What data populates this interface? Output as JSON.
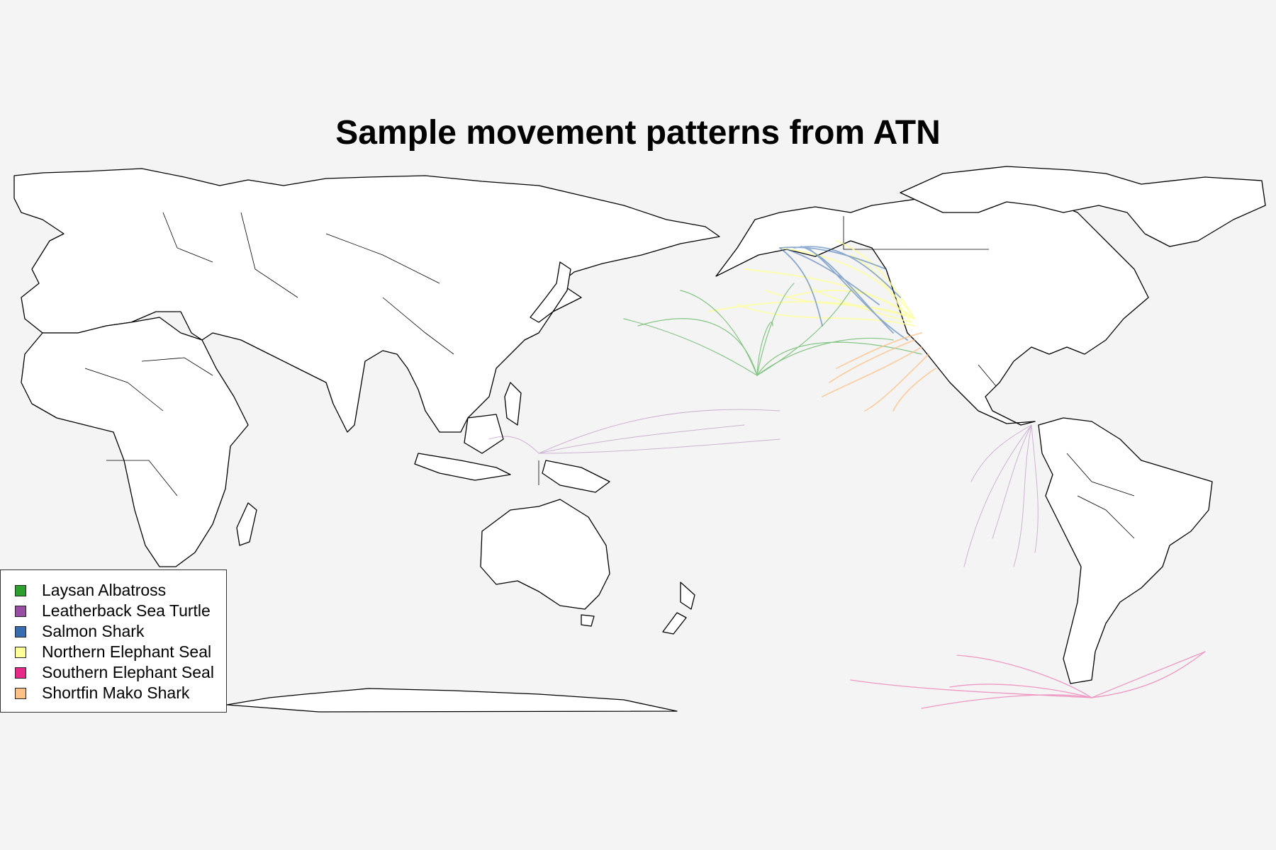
{
  "title": "Sample movement patterns from ATN",
  "map": {
    "background_color": "#f4f4f4",
    "land_color": "#ffffff",
    "border_color": "#000000",
    "projection": "Pacific-centered world map"
  },
  "legend": {
    "items": [
      {
        "label": "Laysan Albatross",
        "color": "#2ca02c"
      },
      {
        "label": "Leatherback Sea Turtle",
        "color": "#984ea3"
      },
      {
        "label": "Salmon Shark",
        "color": "#386cb0"
      },
      {
        "label": "Northern Elephant Seal",
        "color": "#ffff99"
      },
      {
        "label": "Southern Elephant Seal",
        "color": "#e7298a"
      },
      {
        "label": "Shortfin Mako Shark",
        "color": "#fdc086"
      }
    ]
  }
}
